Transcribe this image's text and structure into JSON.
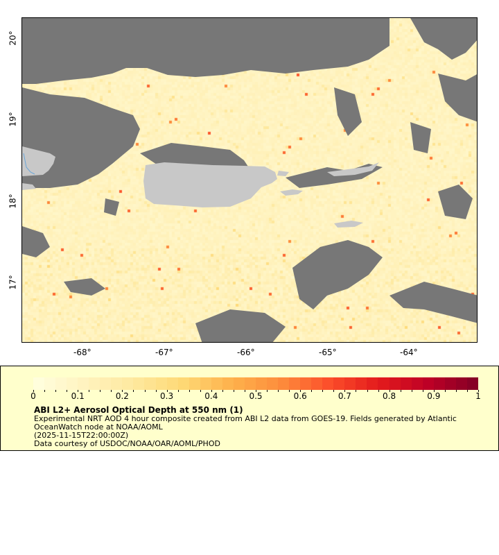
{
  "map": {
    "lon_ticks": [
      "-68°",
      "-67°",
      "-66°",
      "-65°",
      "-64°"
    ],
    "lat_ticks": [
      "20°",
      "19°",
      "18°",
      "17°"
    ],
    "colors": {
      "no_data": "#777777",
      "land": "#c8c8c8",
      "low": "#fff3c0",
      "river": "#6aa6d8"
    }
  },
  "legend": {
    "colorbar_ticks": [
      "0",
      "0.1",
      "0.2",
      "0.3",
      "0.4",
      "0.5",
      "0.6",
      "0.7",
      "0.8",
      "0.9",
      "1"
    ],
    "colorbar_range": [
      0,
      1
    ],
    "colorbar_colors": [
      "#ffffe0",
      "#fff3c0",
      "#fee9a0",
      "#fed976",
      "#feb24c",
      "#fd8d3c",
      "#fc4e2a",
      "#e31a1c",
      "#bd0026",
      "#800026"
    ],
    "title": "ABI L2+ Aerosol Optical Depth at 550 nm (1)",
    "description_line1": "Experimental NRT AOD 4 hour composite created from ABI L2 data from GOES-19. Fields generated by Atlantic",
    "description_line2": "OceanWatch node at NOAA/AOML",
    "time": "(2025-11-15T22:00:00Z)",
    "credit": "Data courtesy of USDOC/NOAA/OAR/AOML/PHOD"
  }
}
